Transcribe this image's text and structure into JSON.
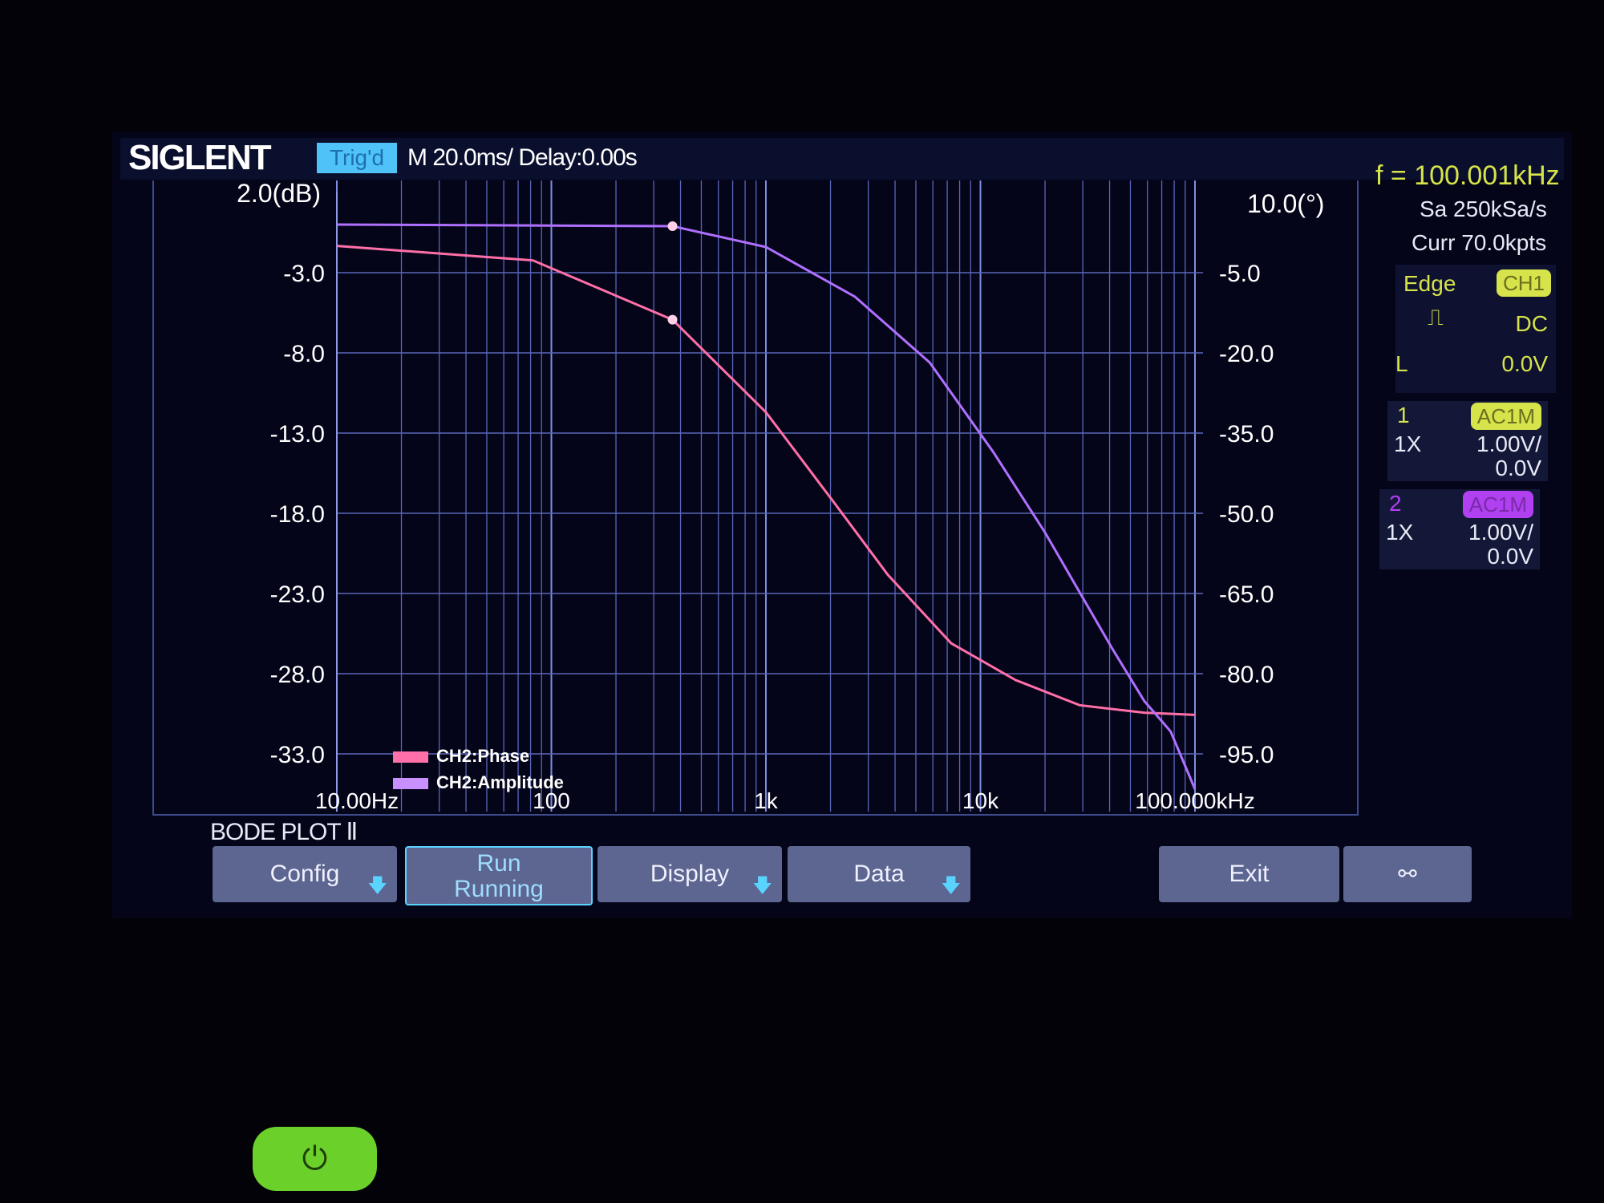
{
  "header": {
    "brand": "SIGLENT",
    "trigger_status": "Trig'd",
    "timebase": "M 20.0ms/ Delay:0.00s",
    "frequency": "f = 100.001kHz"
  },
  "side_panel": {
    "sample_rate": "Sa 250kSa/s",
    "memory": "Curr 70.0kpts",
    "trigger": {
      "type": "Edge",
      "source": "CH1",
      "slope_icon": "rising-edge-icon",
      "coupling": "DC",
      "level_label": "L",
      "level": "0.0V"
    },
    "channels": [
      {
        "number": "1",
        "coupling": "AC1M",
        "probe": "1X",
        "scale": "1.00V/",
        "offset": "0.0V",
        "color": "#d6e34a"
      },
      {
        "number": "2",
        "coupling": "AC1M",
        "probe": "1X",
        "scale": "1.00V/",
        "offset": "0.0V",
        "color": "#b040f0"
      }
    ]
  },
  "mode_title": "BODE PLOT Ⅱ",
  "menu": {
    "config": "Config",
    "run": "Run",
    "run_state": "Running",
    "display": "Display",
    "data": "Data",
    "exit": "Exit",
    "network_icon": "network-icon"
  },
  "power_icon": "power-icon",
  "chart_data": {
    "type": "line",
    "x_scale": "log",
    "xlim": [
      10,
      100000
    ],
    "x_ticks": [
      {
        "value": 10,
        "label": "10.00Hz"
      },
      {
        "value": 100,
        "label": "100"
      },
      {
        "value": 1000,
        "label": "1k"
      },
      {
        "value": 10000,
        "label": "10k"
      },
      {
        "value": 100000,
        "label": "100.000kHz"
      }
    ],
    "y_left": {
      "unit_label": "2.0(dB)",
      "range": [
        2,
        -33
      ],
      "ticks": [
        "-3.0",
        "-8.0",
        "-13.0",
        "-18.0",
        "-23.0",
        "-28.0",
        "-33.0"
      ],
      "tick_values": [
        -3,
        -8,
        -13,
        -18,
        -23,
        -28,
        -33
      ]
    },
    "y_right": {
      "unit_label": "10.0(°)",
      "range": [
        10,
        -95
      ],
      "ticks": [
        "-5.0",
        "-20.0",
        "-35.0",
        "-50.0",
        "-65.0",
        "-80.0",
        "-95.0"
      ],
      "tick_values": [
        -5,
        -20,
        -35,
        -50,
        -65,
        -80,
        -95
      ]
    },
    "grid": true,
    "legend_position": "bottom-left",
    "series": [
      {
        "name": "CH2:Phase",
        "axis": "right",
        "color": "#ff6fa8",
        "x": [
          10,
          82,
          367,
          1000,
          2070,
          3700,
          7300,
          14600,
          29000,
          58000,
          100000
        ],
        "y": [
          0,
          -2.7,
          -13.8,
          -31.1,
          -47.9,
          -61.5,
          -74.3,
          -81.2,
          -85.9,
          -87.3,
          -87.7
        ],
        "marker_x": 367
      },
      {
        "name": "CH2:Amplitude",
        "axis": "left",
        "color": "#b070ff",
        "x": [
          10,
          367,
          1000,
          2600,
          5800,
          11500,
          20000,
          41000,
          58000,
          77000,
          100000
        ],
        "y": [
          0,
          -0.1,
          -1.4,
          -4.5,
          -8.6,
          -14.2,
          -19.2,
          -26.4,
          -29.7,
          -31.6,
          -35.2
        ],
        "marker_x": 367
      }
    ]
  }
}
